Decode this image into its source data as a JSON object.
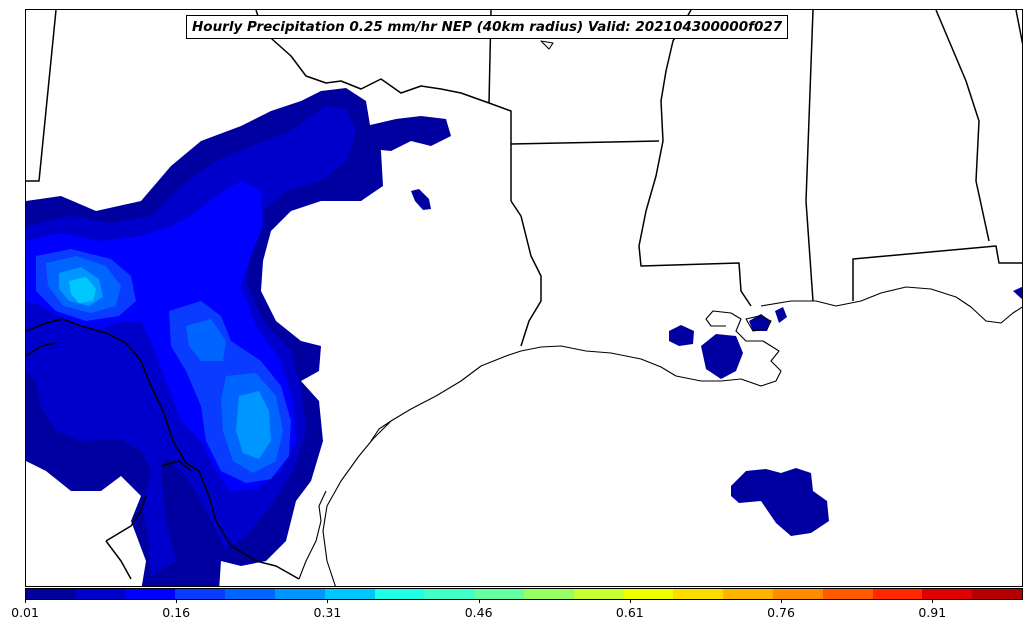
{
  "title": "Hourly Precipitation 0.25 mm/hr NEP (40km radius) Valid: 202104300000f027",
  "colorbar": {
    "colors": [
      "#00009a",
      "#0000cd",
      "#0000ff",
      "#0a3cff",
      "#0064ff",
      "#0096ff",
      "#00c8ff",
      "#1effe6",
      "#41ffc8",
      "#64ffa0",
      "#96ff64",
      "#c8ff32",
      "#f0ff00",
      "#ffdc00",
      "#ffb400",
      "#ff8c00",
      "#ff5a00",
      "#ff2800",
      "#e10000",
      "#b40000"
    ],
    "tick_labels": [
      "0.01",
      "0.16",
      "0.31",
      "0.46",
      "0.61",
      "0.76",
      "0.91"
    ],
    "tick_values": [
      0.01,
      0.16,
      0.31,
      0.46,
      0.61,
      0.76,
      0.91
    ],
    "range": [
      0.01,
      1.0
    ]
  },
  "layers": {
    "precip_colors": {
      "lvl1": "#0000a0",
      "lvl2": "#0000cd",
      "lvl3": "#0000ff",
      "lvl4": "#0a3cff",
      "lvl5": "#0064ff",
      "lvl6": "#0096ff",
      "lvl7": "#00c8ff"
    },
    "boundary_color": "#000000"
  }
}
